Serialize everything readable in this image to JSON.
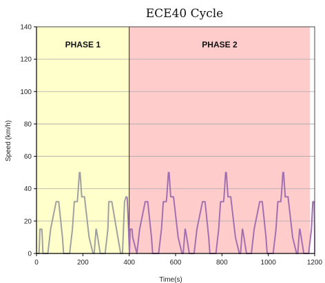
{
  "chart_data": {
    "type": "line",
    "title": "ECE40 Cycle",
    "xlabel": "Time(s)",
    "ylabel": "Speed (km/h)",
    "xlim": [
      0,
      1200
    ],
    "ylim": [
      0,
      140
    ],
    "x_ticks": [
      "0",
      "200",
      "400",
      "600",
      "800",
      "1000",
      "1200"
    ],
    "y_ticks": [
      "0",
      "20",
      "40",
      "60",
      "80",
      "100",
      "120",
      "140"
    ],
    "grid": true,
    "regions": [
      {
        "label": "PHASE 1",
        "x_range": [
          0,
          400
        ],
        "color": "#ffffcc"
      },
      {
        "label": "PHASE 2",
        "x_range": [
          400,
          1180
        ],
        "color": "#ffcccc"
      }
    ],
    "phase_boundary": 400,
    "series": [
      {
        "color": "#a0a0a0",
        "x": [
          0,
          11,
          15,
          23,
          25,
          28,
          49,
          61,
          85,
          96,
          112,
          117,
          143,
          155,
          163,
          176,
          178,
          185,
          188,
          195,
          207,
          227,
          244,
          249,
          257,
          258,
          264,
          275,
          296,
          308,
          312,
          325,
          351,
          363,
          371,
          375,
          380,
          386,
          390
        ],
        "y": [
          0,
          0,
          15,
          15,
          10,
          0,
          0,
          15,
          32,
          32,
          10,
          0,
          0,
          15,
          32,
          32,
          35,
          50,
          50,
          35,
          35,
          10,
          0,
          0,
          15,
          15,
          10,
          0,
          0,
          15,
          32,
          32,
          10,
          0,
          0,
          15,
          32,
          35,
          35
        ]
      },
      {
        "color": "#a070b0",
        "x": [
          391,
          396,
          401,
          404,
          412,
          415,
          433,
          445,
          469,
          480,
          496,
          501,
          527,
          539,
          547,
          560,
          562,
          569,
          572,
          579,
          591,
          611,
          628,
          633,
          641,
          642,
          648,
          659,
          680,
          692,
          716,
          727,
          743,
          748,
          774,
          786,
          794,
          807,
          809,
          816,
          819,
          826,
          838,
          858,
          875,
          880,
          888,
          889,
          895,
          906,
          927,
          939,
          963,
          974,
          990,
          995,
          1021,
          1033,
          1041,
          1054,
          1056,
          1063,
          1066,
          1073,
          1085,
          1105,
          1122,
          1127,
          1135,
          1136,
          1142,
          1153,
          1174,
          1186,
          1192,
          1198,
          1210,
          1220,
          1230
        ],
        "y": [
          35,
          20,
          0,
          15,
          15,
          10,
          0,
          15,
          32,
          32,
          10,
          0,
          0,
          15,
          32,
          32,
          35,
          50,
          50,
          35,
          35,
          10,
          0,
          0,
          15,
          15,
          10,
          0,
          0,
          15,
          32,
          32,
          10,
          0,
          0,
          15,
          32,
          32,
          35,
          50,
          50,
          35,
          35,
          10,
          0,
          0,
          15,
          15,
          10,
          0,
          0,
          15,
          32,
          32,
          10,
          0,
          0,
          15,
          32,
          32,
          35,
          50,
          50,
          35,
          35,
          10,
          0,
          0,
          15,
          15,
          10,
          0,
          0,
          15,
          32,
          32,
          10,
          0,
          0
        ]
      }
    ]
  }
}
